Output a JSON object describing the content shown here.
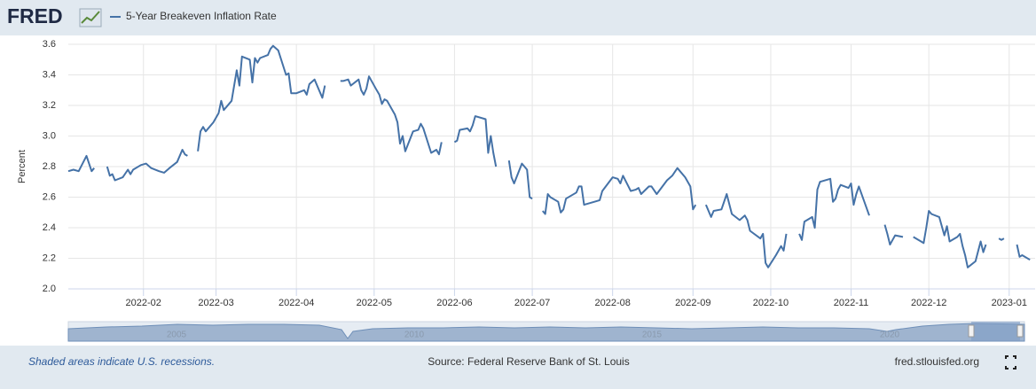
{
  "logo": "FRED",
  "chart_data": {
    "type": "line",
    "ylabel": "Percent",
    "xlim": [
      "2022-01-03",
      "2023-01-11"
    ],
    "xticks": [
      {
        "value": "2022-02-01",
        "label": "2022-02"
      },
      {
        "value": "2022-03-01",
        "label": "2022-03"
      },
      {
        "value": "2022-04-01",
        "label": "2022-04"
      },
      {
        "value": "2022-05-01",
        "label": "2022-05"
      },
      {
        "value": "2022-06-01",
        "label": "2022-06"
      },
      {
        "value": "2022-07-01",
        "label": "2022-07"
      },
      {
        "value": "2022-08-01",
        "label": "2022-08"
      },
      {
        "value": "2022-09-01",
        "label": "2022-09"
      },
      {
        "value": "2022-10-01",
        "label": "2022-10"
      },
      {
        "value": "2022-11-01",
        "label": "2022-11"
      },
      {
        "value": "2022-12-01",
        "label": "2022-12"
      },
      {
        "value": "2023-01-01",
        "label": "2023-01"
      }
    ],
    "ylim": [
      2,
      3.6
    ],
    "yticks": [
      {
        "value": 2,
        "label": "2.0"
      },
      {
        "value": 2.2,
        "label": "2.2"
      },
      {
        "value": 2.4,
        "label": "2.4"
      },
      {
        "value": 2.6,
        "label": "2.6"
      },
      {
        "value": 2.8,
        "label": "2.8"
      },
      {
        "value": 3,
        "label": "3.0"
      },
      {
        "value": 3.2,
        "label": "3.2"
      },
      {
        "value": 3.4,
        "label": "3.4"
      },
      {
        "value": 3.6,
        "label": "3.6"
      }
    ],
    "grid": true,
    "x": [
      "2022-01-03",
      "2022-01-05",
      "2022-01-07",
      "2022-01-10",
      "2022-01-12",
      "2022-01-13",
      "2022-01-17",
      "2022-01-18",
      "2022-01-19",
      "2022-01-20",
      "2022-01-21",
      "2022-01-24",
      "2022-01-26",
      "2022-01-27",
      "2022-01-28",
      "2022-01-31",
      "2022-02-02",
      "2022-02-04",
      "2022-02-07",
      "2022-02-09",
      "2022-02-11",
      "2022-02-14",
      "2022-02-16",
      "2022-02-17",
      "2022-02-18",
      "2022-02-21",
      "2022-02-22",
      "2022-02-23",
      "2022-02-24",
      "2022-02-25",
      "2022-02-28",
      "2022-03-02",
      "2022-03-03",
      "2022-03-04",
      "2022-03-07",
      "2022-03-08",
      "2022-03-09",
      "2022-03-10",
      "2022-03-11",
      "2022-03-14",
      "2022-03-15",
      "2022-03-16",
      "2022-03-17",
      "2022-03-18",
      "2022-03-21",
      "2022-03-22",
      "2022-03-23",
      "2022-03-25",
      "2022-03-28",
      "2022-03-29",
      "2022-03-30",
      "2022-04-01",
      "2022-04-04",
      "2022-04-05",
      "2022-04-06",
      "2022-04-08",
      "2022-04-11",
      "2022-04-12",
      "2022-04-15",
      "2022-04-18",
      "2022-04-19",
      "2022-04-21",
      "2022-04-22",
      "2022-04-25",
      "2022-04-26",
      "2022-04-27",
      "2022-04-28",
      "2022-04-29",
      "2022-05-02",
      "2022-05-03",
      "2022-05-04",
      "2022-05-05",
      "2022-05-06",
      "2022-05-09",
      "2022-05-10",
      "2022-05-11",
      "2022-05-12",
      "2022-05-13",
      "2022-05-16",
      "2022-05-18",
      "2022-05-19",
      "2022-05-20",
      "2022-05-23",
      "2022-05-25",
      "2022-05-26",
      "2022-05-27",
      "2022-05-30",
      "2022-06-01",
      "2022-06-02",
      "2022-06-03",
      "2022-06-06",
      "2022-06-07",
      "2022-06-08",
      "2022-06-09",
      "2022-06-13",
      "2022-06-14",
      "2022-06-15",
      "2022-06-16",
      "2022-06-17",
      "2022-06-20",
      "2022-06-22",
      "2022-06-23",
      "2022-06-24",
      "2022-06-27",
      "2022-06-28",
      "2022-06-29",
      "2022-06-30",
      "2022-07-01",
      "2022-07-04",
      "2022-07-05",
      "2022-07-06",
      "2022-07-07",
      "2022-07-08",
      "2022-07-11",
      "2022-07-12",
      "2022-07-13",
      "2022-07-14",
      "2022-07-18",
      "2022-07-19",
      "2022-07-20",
      "2022-07-21",
      "2022-07-25",
      "2022-07-27",
      "2022-07-28",
      "2022-08-01",
      "2022-08-03",
      "2022-08-04",
      "2022-08-05",
      "2022-08-08",
      "2022-08-10",
      "2022-08-11",
      "2022-08-12",
      "2022-08-15",
      "2022-08-16",
      "2022-08-18",
      "2022-08-22",
      "2022-08-24",
      "2022-08-26",
      "2022-08-29",
      "2022-08-31",
      "2022-09-01",
      "2022-09-02",
      "2022-09-05",
      "2022-09-06",
      "2022-09-08",
      "2022-09-09",
      "2022-09-12",
      "2022-09-14",
      "2022-09-16",
      "2022-09-19",
      "2022-09-21",
      "2022-09-22",
      "2022-09-23",
      "2022-09-27",
      "2022-09-28",
      "2022-09-29",
      "2022-09-30",
      "2022-10-03",
      "2022-10-05",
      "2022-10-06",
      "2022-10-07",
      "2022-10-10",
      "2022-10-12",
      "2022-10-13",
      "2022-10-14",
      "2022-10-17",
      "2022-10-18",
      "2022-10-19",
      "2022-10-20",
      "2022-10-24",
      "2022-10-25",
      "2022-10-26",
      "2022-10-27",
      "2022-10-28",
      "2022-10-31",
      "2022-11-01",
      "2022-11-02",
      "2022-11-03",
      "2022-11-04",
      "2022-11-08",
      "2022-11-11",
      "2022-11-14",
      "2022-11-15",
      "2022-11-16",
      "2022-11-17",
      "2022-11-18",
      "2022-11-21",
      "2022-11-24",
      "2022-11-25",
      "2022-11-28",
      "2022-11-29",
      "2022-11-30",
      "2022-12-01",
      "2022-12-02",
      "2022-12-05",
      "2022-12-07",
      "2022-12-08",
      "2022-12-09",
      "2022-12-12",
      "2022-12-13",
      "2022-12-14",
      "2022-12-15",
      "2022-12-16",
      "2022-12-19",
      "2022-12-21",
      "2022-12-22",
      "2022-12-23",
      "2022-12-26",
      "2022-12-28",
      "2022-12-29",
      "2022-12-30",
      "2023-01-02",
      "2023-01-04",
      "2023-01-05",
      "2023-01-06",
      "2023-01-09"
    ],
    "series": [
      {
        "name": "5-Year Breakeven Inflation Rate",
        "color": "#4572a7",
        "values": [
          2.77,
          2.78,
          2.77,
          2.87,
          2.77,
          2.79,
          null,
          2.8,
          2.74,
          2.75,
          2.71,
          2.73,
          2.78,
          2.75,
          2.78,
          2.81,
          2.82,
          2.79,
          2.77,
          2.76,
          2.79,
          2.83,
          2.91,
          2.88,
          2.87,
          null,
          2.9,
          3.03,
          3.06,
          3.03,
          3.09,
          3.15,
          3.23,
          3.17,
          3.23,
          3.33,
          3.43,
          3.33,
          3.52,
          3.5,
          3.35,
          3.51,
          3.48,
          3.51,
          3.53,
          3.57,
          3.59,
          3.56,
          3.4,
          3.41,
          3.28,
          3.28,
          3.3,
          3.27,
          3.34,
          3.37,
          3.25,
          3.33,
          null,
          3.36,
          3.36,
          3.37,
          3.33,
          3.37,
          3.3,
          3.27,
          3.31,
          3.39,
          3.3,
          3.27,
          3.21,
          3.24,
          3.23,
          3.14,
          3.09,
          2.95,
          3,
          2.9,
          3.03,
          3.04,
          3.08,
          3.05,
          2.89,
          2.91,
          2.88,
          2.96,
          null,
          2.96,
          2.97,
          3.04,
          3.05,
          3.03,
          3.07,
          3.13,
          3.11,
          2.89,
          3,
          2.89,
          2.8,
          null,
          2.84,
          2.73,
          2.69,
          2.82,
          2.8,
          2.78,
          2.6,
          2.59,
          null,
          2.51,
          2.49,
          2.62,
          2.6,
          2.57,
          2.5,
          2.52,
          2.59,
          2.63,
          2.67,
          2.67,
          2.55,
          2.57,
          2.58,
          2.64,
          2.73,
          2.72,
          2.69,
          2.74,
          2.64,
          2.65,
          2.66,
          2.62,
          2.67,
          2.67,
          2.62,
          2.71,
          2.74,
          2.79,
          2.73,
          2.67,
          2.52,
          2.55,
          null,
          2.55,
          2.47,
          2.51,
          2.52,
          2.62,
          2.49,
          2.45,
          2.48,
          2.45,
          2.38,
          2.33,
          2.36,
          2.17,
          2.14,
          2.22,
          2.28,
          2.25,
          2.36,
          null,
          2.36,
          2.32,
          2.44,
          2.47,
          2.4,
          2.65,
          2.7,
          2.72,
          2.57,
          2.59,
          2.65,
          2.68,
          2.66,
          2.69,
          2.55,
          2.62,
          2.67,
          2.48,
          null,
          2.42,
          2.36,
          2.29,
          2.32,
          2.35,
          2.34,
          null,
          2.34,
          2.31,
          2.3,
          2.4,
          2.51,
          2.49,
          2.47,
          2.35,
          2.41,
          2.31,
          2.34,
          2.36,
          2.28,
          2.22,
          2.14,
          2.18,
          2.31,
          2.24,
          2.29,
          null,
          2.33,
          2.32,
          2.33,
          null,
          2.29,
          2.21,
          2.22,
          2.19
        ]
      }
    ]
  },
  "navigator_labels": [
    "2005",
    "2010",
    "2015",
    "2020"
  ],
  "footer": {
    "note": "Shaded areas indicate U.S. recessions.",
    "source": "Source: Federal Reserve Bank of St. Louis",
    "site": "fred.stlouisfed.org"
  }
}
